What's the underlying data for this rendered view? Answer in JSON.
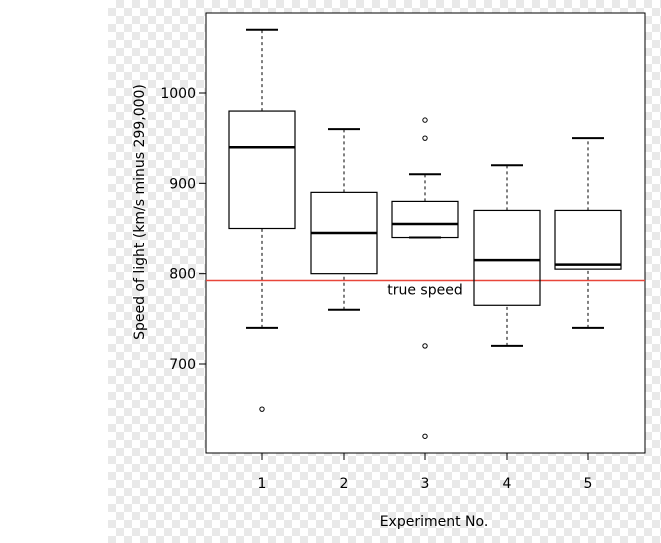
{
  "chart_data": {
    "type": "boxplot",
    "xlabel": "Experiment No.",
    "ylabel": "Speed of light (km/s minus 299,000)",
    "categories": [
      "1",
      "2",
      "3",
      "4",
      "5"
    ],
    "yticks": [
      700,
      800,
      900,
      1000
    ],
    "ylim": [
      600,
      1100
    ],
    "boxes": [
      {
        "name": "1",
        "whisker_low": 740,
        "q1": 850,
        "median": 940,
        "q3": 980,
        "whisker_high": 1070,
        "outliers": [
          650
        ]
      },
      {
        "name": "2",
        "whisker_low": 760,
        "q1": 800,
        "median": 845,
        "q3": 890,
        "whisker_high": 960,
        "outliers": []
      },
      {
        "name": "3",
        "whisker_low": 840,
        "q1": 840,
        "median": 855,
        "q3": 880,
        "whisker_high": 910,
        "outliers": [
          620,
          720,
          950,
          970
        ]
      },
      {
        "name": "4",
        "whisker_low": 720,
        "q1": 765,
        "median": 815,
        "q3": 870,
        "whisker_high": 920,
        "outliers": []
      },
      {
        "name": "5",
        "whisker_low": 740,
        "q1": 805,
        "median": 810,
        "q3": 870,
        "whisker_high": 950,
        "outliers": []
      }
    ],
    "reference_line": {
      "value": 792.458,
      "label": "true speed",
      "color": "#e8463a"
    },
    "grid": false
  }
}
